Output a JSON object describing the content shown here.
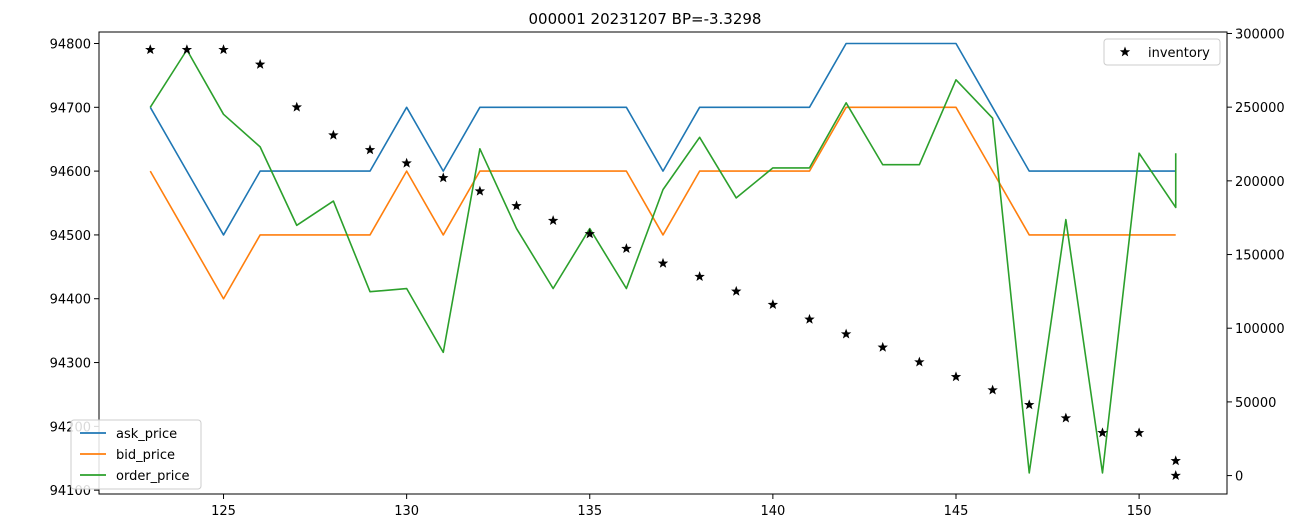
{
  "chart_data": {
    "type": "line",
    "title": "000001 20231207 BP=-3.3298",
    "xlabel": "",
    "ylabel": "",
    "xlim": [
      121.6,
      152.4
    ],
    "ylim": [
      94094,
      94818
    ],
    "y2lim": [
      -12500,
      301000
    ],
    "x_ticks": [
      125,
      130,
      135,
      140,
      145,
      150
    ],
    "y_ticks": [
      94100,
      94200,
      94300,
      94400,
      94500,
      94600,
      94700,
      94800
    ],
    "y2_ticks": [
      0,
      50000,
      100000,
      150000,
      200000,
      250000,
      300000
    ],
    "grid": false,
    "series": [
      {
        "name": "ask_price",
        "axis": "left",
        "color": "#1f77b4",
        "x": [
          123,
          124,
          125,
          126,
          127,
          128,
          129,
          130,
          131,
          132,
          133,
          134,
          135,
          136,
          137,
          138,
          139,
          140,
          141,
          142,
          143,
          144,
          145,
          146,
          147,
          148,
          149,
          150,
          151
        ],
        "y": [
          94700,
          94600,
          94500,
          94600,
          94600,
          94600,
          94600,
          94700,
          94600,
          94700,
          94700,
          94700,
          94700,
          94700,
          94600,
          94700,
          94700,
          94700,
          94700,
          94800,
          94800,
          94800,
          94800,
          94700,
          94600,
          94600,
          94600,
          94600,
          94600
        ]
      },
      {
        "name": "bid_price",
        "axis": "left",
        "color": "#ff7f0e",
        "x": [
          123,
          124,
          125,
          126,
          127,
          128,
          129,
          130,
          131,
          132,
          133,
          134,
          135,
          136,
          137,
          138,
          139,
          140,
          141,
          142,
          143,
          144,
          145,
          146,
          147,
          148,
          149,
          150,
          151
        ],
        "y": [
          94600,
          94500,
          94400,
          94500,
          94500,
          94500,
          94500,
          94600,
          94500,
          94600,
          94600,
          94600,
          94600,
          94600,
          94500,
          94600,
          94600,
          94600,
          94600,
          94700,
          94700,
          94700,
          94700,
          94600,
          94500,
          94500,
          94500,
          94500,
          94500
        ]
      },
      {
        "name": "order_price",
        "axis": "left",
        "color": "#2ca02c",
        "x": [
          123,
          124,
          125,
          126,
          127,
          128,
          129,
          130,
          131,
          132,
          133,
          134,
          135,
          136,
          137,
          138,
          139,
          140,
          141,
          142,
          143,
          144,
          145,
          146,
          147,
          148,
          149,
          150,
          151,
          151
        ],
        "y": [
          94700,
          94790,
          94689,
          94638,
          94515,
          94553,
          94411,
          94416,
          94316,
          94635,
          94510,
          94416,
          94510,
          94416,
          94571,
          94653,
          94558,
          94605,
          94605,
          94707,
          94610,
          94610,
          94743,
          94683,
          94127,
          94524,
          94127,
          94628,
          94543,
          94628
        ]
      },
      {
        "name": "inventory",
        "axis": "right",
        "color": "#000000",
        "marker": "star",
        "x": [
          123,
          124,
          125,
          126,
          127,
          128,
          129,
          130,
          131,
          132,
          133,
          134,
          135,
          136,
          137,
          138,
          139,
          140,
          141,
          142,
          143,
          144,
          145,
          146,
          147,
          148,
          149,
          150,
          151,
          151
        ],
        "y": [
          289000,
          289000,
          289000,
          279000,
          250000,
          231000,
          221000,
          212000,
          202000,
          193000,
          183000,
          173000,
          164000,
          154000,
          144000,
          135000,
          125000,
          116000,
          106000,
          96000,
          87000,
          77000,
          67000,
          58000,
          48000,
          39000,
          29000,
          29000,
          10000,
          0
        ]
      }
    ],
    "legends": [
      {
        "position": "lower-left",
        "entries": [
          "ask_price",
          "bid_price",
          "order_price"
        ]
      },
      {
        "position": "upper-right",
        "entries": [
          "inventory"
        ]
      }
    ]
  }
}
